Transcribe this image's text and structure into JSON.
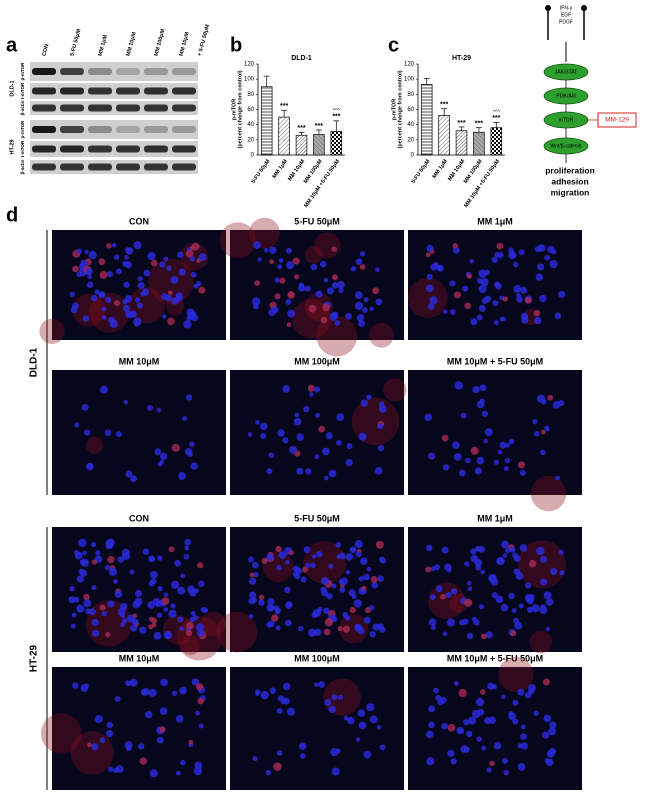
{
  "panel_labels": [
    "a",
    "b",
    "c",
    "d"
  ],
  "blot": {
    "lanes": [
      "CON",
      "5-FU 50μM",
      "MM 1μM",
      "MM 10μM",
      "MM 100μM",
      "MM 10μM",
      "+ 5-FU 50μM"
    ],
    "cell_lines": [
      {
        "name": "DLD-1",
        "rows": [
          "p-mTOR",
          "t-mTOR",
          "β-actin"
        ]
      },
      {
        "name": "HT-29",
        "rows": [
          "p-mTOR",
          "t-mTOR",
          "β-actin"
        ]
      }
    ]
  },
  "chart_data": [
    {
      "type": "bar",
      "title": "DLD-1",
      "y_label": "p-mTOR",
      "y_label_sub": "(percent change from control)",
      "categories": [
        "5-FU 50μM",
        "MM 1μM",
        "MM 10μM",
        "MM 100μM",
        "MM 10μM +5-FU 50μM"
      ],
      "values": [
        90,
        50,
        26,
        27,
        31
      ],
      "errors": [
        14,
        9,
        4,
        6,
        14
      ],
      "annotations": [
        null,
        "***",
        "***",
        "***",
        "***"
      ],
      "annotations_2": [
        null,
        null,
        null,
        null,
        "^^^"
      ],
      "color": "#000000",
      "ylim": [
        0,
        120
      ],
      "yticks": [
        0,
        20,
        40,
        60,
        80,
        100,
        120
      ]
    },
    {
      "type": "bar",
      "title": "HT-29",
      "y_label": "p-mTOR",
      "y_label_sub": "(percent change from control)",
      "categories": [
        "5-FU 50μM",
        "MM 1μM",
        "MM 10μM",
        "MM 100μM",
        "MM 10μM +5-FU 50μM"
      ],
      "values": [
        93,
        52,
        32,
        30,
        36
      ],
      "errors": [
        8,
        9,
        5,
        6,
        7
      ],
      "annotations": [
        null,
        "***",
        "***",
        "***",
        "***"
      ],
      "annotations_2": [
        null,
        null,
        null,
        null,
        "^^^"
      ],
      "color": "#000000",
      "ylim": [
        0,
        120
      ],
      "yticks": [
        0,
        20,
        40,
        60,
        80,
        100,
        120
      ]
    }
  ],
  "pathway": {
    "inputs": [
      "IFN-γ",
      "EGF",
      "PDGF"
    ],
    "nodes": [
      "JAK/STAT",
      "PI3K/Akt",
      "mTOR",
      "Wnt/β-catenin"
    ],
    "inhibitor": "MM-129",
    "outcomes": [
      "proliferation",
      "adhesion",
      "migration"
    ]
  },
  "micrographs": {
    "cell_lines": [
      {
        "name": "DLD-1",
        "panels": [
          "CON",
          "5-FU 50μM",
          "MM 1μM",
          "MM 10μM",
          "MM 100μM",
          "MM 10μM + 5-FU 50μM"
        ]
      },
      {
        "name": "HT-29",
        "panels": [
          "CON",
          "5-FU 50μM",
          "MM 1μM",
          "MM 10μM",
          "MM 100μM",
          "MM 10μM + 5-FU 50μM"
        ]
      }
    ]
  }
}
